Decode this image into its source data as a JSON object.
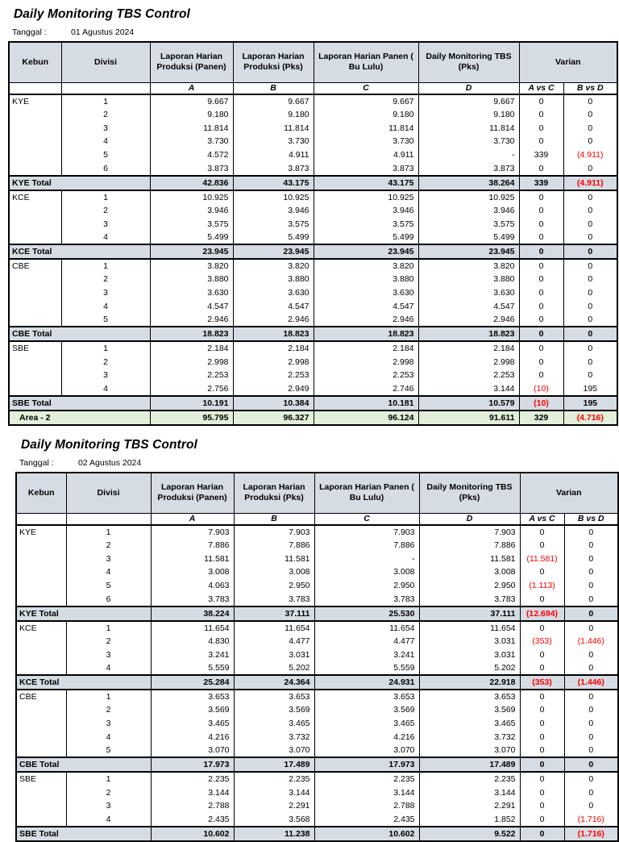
{
  "colors": {
    "header_fill": "#D6DCE4",
    "total_row_fill": "#D6DCE4",
    "grand_total_fill": "#E2EFDA",
    "negative_text": "#FF0000",
    "border": "#000000"
  },
  "reports": [
    {
      "title": "Daily Monitoring TBS Control",
      "date_label": "Tanggal :",
      "date_value": "01 Agustus 2024",
      "columns": [
        "Kebun",
        "Divisi",
        "Laporan Harian Produksi (Panen)",
        "Laporan Harian Produksi (Pks)",
        "Laporan Harian Panen ( Bu Lulu)",
        "Daily Monitoring TBS (Pks)",
        "Varian"
      ],
      "subcolumns": [
        "A",
        "B",
        "C",
        "D",
        "A vs C",
        "B vs D"
      ],
      "sections": [
        {
          "kebun": "KYE",
          "rows": [
            [
              "1",
              "9.667",
              "9.667",
              "9.667",
              "9.667",
              "0",
              "0"
            ],
            [
              "2",
              "9.180",
              "9.180",
              "9.180",
              "9.180",
              "0",
              "0"
            ],
            [
              "3",
              "11.814",
              "11.814",
              "11.814",
              "11.814",
              "0",
              "0"
            ],
            [
              "4",
              "3.730",
              "3.730",
              "3.730",
              "3.730",
              "0",
              "0"
            ],
            [
              "5",
              "4.572",
              "4.911",
              "4.911",
              "-",
              "339",
              "(4.911)"
            ],
            [
              "6",
              "3.873",
              "3.873",
              "3.873",
              "3.873",
              "0",
              "0"
            ]
          ],
          "total": {
            "label": "KYE Total",
            "values": [
              "42.836",
              "43.175",
              "43.175",
              "38.264",
              "339",
              "(4.911)"
            ]
          }
        },
        {
          "kebun": "KCE",
          "rows": [
            [
              "1",
              "10.925",
              "10.925",
              "10.925",
              "10.925",
              "0",
              "0"
            ],
            [
              "2",
              "3.946",
              "3.946",
              "3.946",
              "3.946",
              "0",
              "0"
            ],
            [
              "3",
              "3.575",
              "3.575",
              "3.575",
              "3.575",
              "0",
              "0"
            ],
            [
              "4",
              "5.499",
              "5.499",
              "5.499",
              "5.499",
              "0",
              "0"
            ]
          ],
          "total": {
            "label": "KCE Total",
            "values": [
              "23.945",
              "23.945",
              "23.945",
              "23.945",
              "0",
              "0"
            ]
          }
        },
        {
          "kebun": "CBE",
          "rows": [
            [
              "1",
              "3.820",
              "3.820",
              "3.820",
              "3.820",
              "0",
              "0"
            ],
            [
              "2",
              "3.880",
              "3.880",
              "3.880",
              "3.880",
              "0",
              "0"
            ],
            [
              "3",
              "3.630",
              "3.630",
              "3.630",
              "3.630",
              "0",
              "0"
            ],
            [
              "4",
              "4.547",
              "4.547",
              "4.547",
              "4.547",
              "0",
              "0"
            ],
            [
              "5",
              "2.946",
              "2.946",
              "2.946",
              "2.946",
              "0",
              "0"
            ]
          ],
          "total": {
            "label": "CBE Total",
            "values": [
              "18.823",
              "18.823",
              "18.823",
              "18.823",
              "0",
              "0"
            ]
          }
        },
        {
          "kebun": "SBE",
          "rows": [
            [
              "1",
              "2.184",
              "2.184",
              "2.184",
              "2.184",
              "0",
              "0"
            ],
            [
              "2",
              "2.998",
              "2.998",
              "2.998",
              "2.998",
              "0",
              "0"
            ],
            [
              "3",
              "2.253",
              "2.253",
              "2.253",
              "2.253",
              "0",
              "0"
            ],
            [
              "4",
              "2.756",
              "2.949",
              "2.746",
              "3.144",
              "(10)",
              "195"
            ]
          ],
          "total": {
            "label": "SBE Total",
            "values": [
              "10.191",
              "10.384",
              "10.181",
              "10.579",
              "(10)",
              "195"
            ]
          }
        }
      ],
      "grand_total": {
        "label": "Area - 2",
        "values": [
          "95.795",
          "96.327",
          "96.124",
          "91.611",
          "329",
          "(4.716)"
        ]
      }
    },
    {
      "title": "Daily Monitoring TBS Control",
      "date_label": "Tanggal :",
      "date_value": "02 Agustus 2024",
      "columns": [
        "Kebun",
        "Divisi",
        "Laporan Harian Produksi (Panen)",
        "Laporan Harian Produksi (Pks)",
        "Laporan Harian Panen ( Bu Lulu)",
        "Daily Monitoring TBS (Pks)",
        "Varian"
      ],
      "subcolumns": [
        "A",
        "B",
        "C",
        "D",
        "A vs C",
        "B vs D"
      ],
      "sections": [
        {
          "kebun": "KYE",
          "rows": [
            [
              "1",
              "7.903",
              "7.903",
              "7.903",
              "7.903",
              "0",
              "0"
            ],
            [
              "2",
              "7.886",
              "7.886",
              "7.886",
              "7.886",
              "0",
              "0"
            ],
            [
              "3",
              "11.581",
              "11.581",
              "-",
              "11.581",
              "(11.581)",
              "0"
            ],
            [
              "4",
              "3.008",
              "3.008",
              "3.008",
              "3.008",
              "0",
              "0"
            ],
            [
              "5",
              "4.063",
              "2.950",
              "2.950",
              "2.950",
              "(1.113)",
              "0"
            ],
            [
              "6",
              "3.783",
              "3.783",
              "3.783",
              "3.783",
              "0",
              "0"
            ]
          ],
          "total": {
            "label": "KYE Total",
            "values": [
              "38.224",
              "37.111",
              "25.530",
              "37.111",
              "(12.694)",
              "0"
            ]
          }
        },
        {
          "kebun": "KCE",
          "rows": [
            [
              "1",
              "11.654",
              "11.654",
              "11.654",
              "11.654",
              "0",
              "0"
            ],
            [
              "2",
              "4.830",
              "4.477",
              "4.477",
              "3.031",
              "(353)",
              "(1.446)"
            ],
            [
              "3",
              "3.241",
              "3.031",
              "3.241",
              "3.031",
              "0",
              "0"
            ],
            [
              "4",
              "5.559",
              "5.202",
              "5.559",
              "5.202",
              "0",
              "0"
            ]
          ],
          "total": {
            "label": "KCE Total",
            "values": [
              "25.284",
              "24.364",
              "24.931",
              "22.918",
              "(353)",
              "(1.446)"
            ]
          }
        },
        {
          "kebun": "CBE",
          "rows": [
            [
              "1",
              "3.653",
              "3.653",
              "3.653",
              "3.653",
              "0",
              "0"
            ],
            [
              "2",
              "3.569",
              "3.569",
              "3.569",
              "3.569",
              "0",
              "0"
            ],
            [
              "3",
              "3.465",
              "3.465",
              "3.465",
              "3.465",
              "0",
              "0"
            ],
            [
              "4",
              "4.216",
              "3.732",
              "4.216",
              "3.732",
              "0",
              "0"
            ],
            [
              "5",
              "3.070",
              "3.070",
              "3.070",
              "3.070",
              "0",
              "0"
            ]
          ],
          "total": {
            "label": "CBE Total",
            "values": [
              "17.973",
              "17.489",
              "17.973",
              "17.489",
              "0",
              "0"
            ]
          }
        },
        {
          "kebun": "SBE",
          "rows": [
            [
              "1",
              "2.235",
              "2.235",
              "2.235",
              "2.235",
              "0",
              "0"
            ],
            [
              "2",
              "3.144",
              "3.144",
              "3.144",
              "3.144",
              "0",
              "0"
            ],
            [
              "3",
              "2.788",
              "2.291",
              "2.788",
              "2.291",
              "0",
              "0"
            ],
            [
              "4",
              "2.435",
              "3.568",
              "2.435",
              "1.852",
              "0",
              "(1.716)"
            ]
          ],
          "total": {
            "label": "SBE Total",
            "values": [
              "10.602",
              "11.238",
              "10.602",
              "9.522",
              "0",
              "(1.716)"
            ]
          }
        }
      ],
      "grand_total": null
    }
  ]
}
